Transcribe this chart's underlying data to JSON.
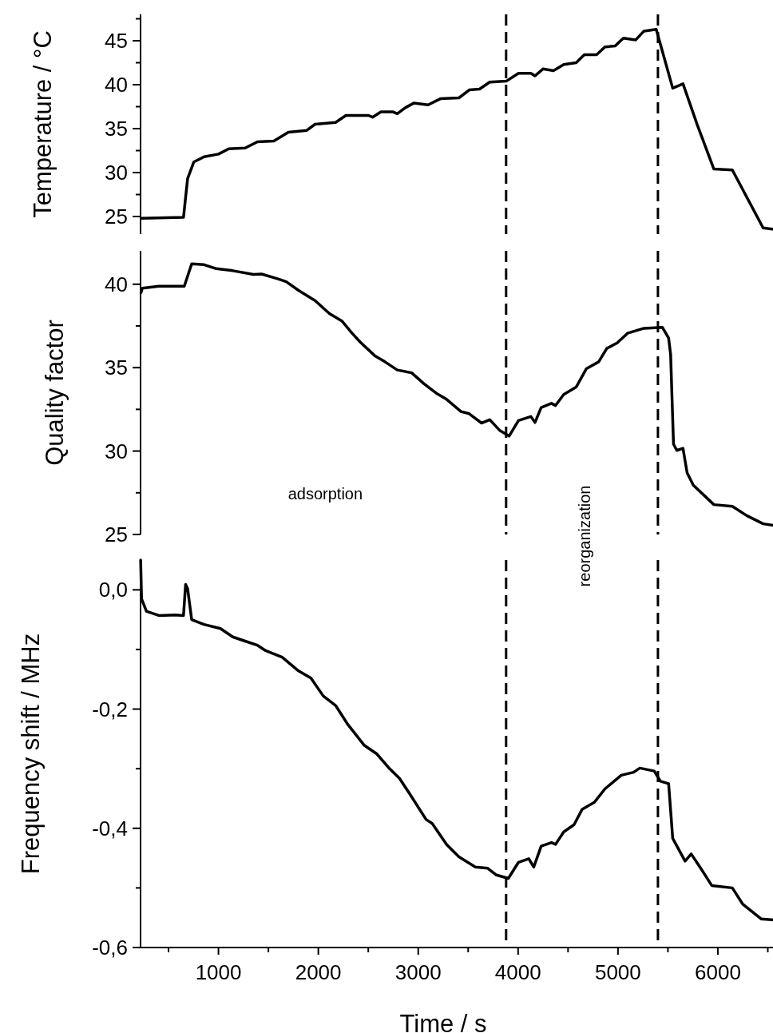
{
  "chart_data": [
    {
      "type": "line",
      "ylabel": "Temperature / °C",
      "xlim": [
        220,
        6600
      ],
      "ylim": [
        23,
        48
      ],
      "yticks": [
        {
          "value": 25,
          "label": "25"
        },
        {
          "value": 27.5,
          "label": null
        },
        {
          "value": 30,
          "label": "30"
        },
        {
          "value": 32.5,
          "label": null
        },
        {
          "value": 35,
          "label": "35"
        },
        {
          "value": 37.5,
          "label": null
        },
        {
          "value": 40,
          "label": "40"
        },
        {
          "value": 42.5,
          "label": null
        },
        {
          "value": 45,
          "label": "45"
        },
        {
          "value": 47.5,
          "label": null
        }
      ],
      "tick_labels": "y",
      "ref_lines": [
        {
          "axis": "x",
          "value": 3880,
          "line_style": "dashed",
          "color": "#000000"
        },
        {
          "axis": "x",
          "value": 5400,
          "line_style": "dashed",
          "color": "#000000"
        }
      ],
      "series": [
        {
          "color": "#000000",
          "x": [
            225,
            650,
            691,
            753,
            856,
            1000,
            1103,
            1267,
            1391,
            1555,
            1700,
            1885,
            1967,
            2173,
            2276,
            2502,
            2543,
            2626,
            2749,
            2790,
            2873,
            2955,
            3099,
            3222,
            3408,
            3511,
            3614,
            3716,
            3881,
            4004,
            4128,
            4169,
            4251,
            4354,
            4457,
            4581,
            4663,
            4786,
            4869,
            4972,
            5054,
            5178,
            5260,
            5383,
            5548,
            5651,
            5795,
            5960,
            6145,
            6453,
            6590
          ],
          "values": [
            24.8,
            24.9,
            29.3,
            31.2,
            31.8,
            32.1,
            32.7,
            32.8,
            33.5,
            33.6,
            34.6,
            34.8,
            35.5,
            35.7,
            36.5,
            36.5,
            36.3,
            36.9,
            36.9,
            36.7,
            37.4,
            37.9,
            37.7,
            38.4,
            38.5,
            39.4,
            39.5,
            40.3,
            40.4,
            41.3,
            41.3,
            41.0,
            41.8,
            41.6,
            42.3,
            42.5,
            43.4,
            43.4,
            44.3,
            44.4,
            45.3,
            45.1,
            46.1,
            46.3,
            39.6,
            40.1,
            35.4,
            30.4,
            30.3,
            23.7,
            23.5
          ]
        }
      ]
    },
    {
      "type": "line",
      "ylabel": "Quality factor",
      "xlim": [
        220,
        6600
      ],
      "ylim": [
        25,
        42
      ],
      "yticks": [
        {
          "value": 25,
          "label": "25"
        },
        {
          "value": 27.5,
          "label": null
        },
        {
          "value": 30,
          "label": "30"
        },
        {
          "value": 32.5,
          "label": null
        },
        {
          "value": 35,
          "label": "35"
        },
        {
          "value": 37.5,
          "label": null
        },
        {
          "value": 40,
          "label": "40"
        }
      ],
      "tick_labels": "y",
      "annotations": [
        "adsorption"
      ],
      "ref_lines": [
        {
          "axis": "x",
          "value": 3880,
          "line_style": "dashed",
          "color": "#000000"
        },
        {
          "axis": "x",
          "value": 5400,
          "line_style": "dashed",
          "color": "#000000"
        }
      ],
      "series": [
        {
          "color": "#000000",
          "x": [
            225,
            238,
            403,
            658,
            732,
            856,
            979,
            1144,
            1350,
            1432,
            1597,
            1679,
            1802,
            1967,
            2111,
            2235,
            2338,
            2420,
            2564,
            2667,
            2790,
            2934,
            3058,
            3181,
            3284,
            3428,
            3510,
            3634,
            3716,
            3819,
            3910,
            4004,
            4128,
            4169,
            4231,
            4334,
            4375,
            4457,
            4581,
            4684,
            4807,
            4889,
            4992,
            5095,
            5260,
            5445,
            5507,
            5527,
            5556,
            5589,
            5651,
            5692,
            5754,
            5960,
            6145,
            6289,
            6453,
            6590
          ],
          "values": [
            39.5,
            39.76,
            39.88,
            39.88,
            41.22,
            41.17,
            40.93,
            40.81,
            40.59,
            40.61,
            40.32,
            40.15,
            39.63,
            39.02,
            38.24,
            37.8,
            37.06,
            36.53,
            35.72,
            35.35,
            34.86,
            34.69,
            34.03,
            33.47,
            33.1,
            32.37,
            32.24,
            31.68,
            31.88,
            31.22,
            30.9,
            31.83,
            32.07,
            31.71,
            32.61,
            32.86,
            32.73,
            33.39,
            33.83,
            34.94,
            35.35,
            36.16,
            36.48,
            37.06,
            37.36,
            37.41,
            36.77,
            35.79,
            30.41,
            30.04,
            30.16,
            28.7,
            27.96,
            26.79,
            26.69,
            26.13,
            25.64,
            25.51
          ]
        }
      ]
    },
    {
      "type": "line",
      "xlabel": "Time / s",
      "ylabel": "Frequency shift / MHz",
      "xlim": [
        220,
        6600
      ],
      "ylim": [
        -0.6,
        0.05
      ],
      "xticks": [
        {
          "value": 500,
          "label": null
        },
        1000,
        {
          "value": 1500,
          "label": null
        },
        2000,
        {
          "value": 2500,
          "label": null
        },
        3000,
        {
          "value": 3500,
          "label": null
        },
        4000,
        {
          "value": 4500,
          "label": null
        },
        5000,
        {
          "value": 5500,
          "label": null
        },
        6000,
        {
          "value": 6500,
          "label": null
        }
      ],
      "yticks": [
        {
          "value": -0.6,
          "label": "-0,6"
        },
        {
          "value": -0.5,
          "label": null
        },
        {
          "value": -0.4,
          "label": "-0,4"
        },
        {
          "value": -0.3,
          "label": null
        },
        {
          "value": -0.2,
          "label": "-0,2"
        },
        {
          "value": -0.1,
          "label": null
        },
        {
          "value": 0,
          "label": "0,0"
        }
      ],
      "annotations": [
        "reorganization"
      ],
      "ref_lines": [
        {
          "axis": "x",
          "value": 3880,
          "line_style": "dashed",
          "color": "#000000"
        },
        {
          "axis": "x",
          "value": 5400,
          "line_style": "dashed",
          "color": "#000000"
        }
      ],
      "series": [
        {
          "color": "#000000",
          "x": [
            221,
            230,
            279,
            403,
            568,
            650,
            671,
            691,
            732,
            856,
            1020,
            1144,
            1267,
            1391,
            1473,
            1638,
            1802,
            1926,
            2049,
            2173,
            2296,
            2461,
            2584,
            2708,
            2811,
            2914,
            3078,
            3140,
            3284,
            3408,
            3572,
            3696,
            3778,
            3902,
            4004,
            4107,
            4157,
            4231,
            4334,
            4375,
            4457,
            4560,
            4642,
            4766,
            4869,
            5033,
            5157,
            5219,
            5363,
            5425,
            5507,
            5548,
            5672,
            5733,
            5836,
            5939,
            6145,
            6248,
            6433,
            6590
          ],
          "values": [
            0.05,
            -0.015,
            -0.036,
            -0.043,
            -0.042,
            -0.043,
            0.009,
            0.002,
            -0.05,
            -0.058,
            -0.065,
            -0.079,
            -0.086,
            -0.093,
            -0.102,
            -0.113,
            -0.136,
            -0.148,
            -0.178,
            -0.194,
            -0.226,
            -0.261,
            -0.275,
            -0.299,
            -0.316,
            -0.342,
            -0.385,
            -0.392,
            -0.427,
            -0.448,
            -0.465,
            -0.467,
            -0.478,
            -0.484,
            -0.457,
            -0.451,
            -0.465,
            -0.43,
            -0.424,
            -0.427,
            -0.406,
            -0.394,
            -0.368,
            -0.356,
            -0.334,
            -0.311,
            -0.306,
            -0.299,
            -0.304,
            -0.321,
            -0.325,
            -0.417,
            -0.455,
            -0.443,
            -0.469,
            -0.496,
            -0.5,
            -0.527,
            -0.552,
            -0.554
          ]
        }
      ]
    }
  ]
}
